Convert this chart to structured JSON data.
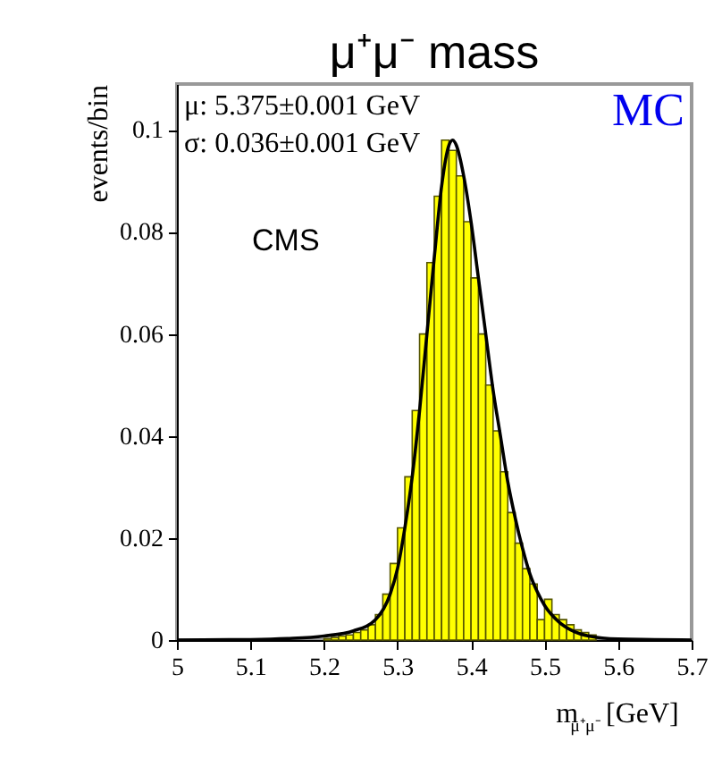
{
  "chart_data": {
    "type": "histogram",
    "title": "μ⁺μ⁻ mass",
    "xlabel": "m$_{μ⁺μ⁻}$ [GeV]",
    "ylabel": "events/bin",
    "annotations": [
      "μ: 5.375±0.001 GeV",
      "σ: 0.036±0.001 GeV",
      "MC",
      "CMS"
    ],
    "xlim": [
      5,
      5.7
    ],
    "xticks": [
      5,
      5.1,
      5.2,
      5.3,
      5.4,
      5.5,
      5.6,
      5.7
    ],
    "ylim": [
      0,
      0.109
    ],
    "yticks": [
      0,
      0.02,
      0.04,
      0.06,
      0.08,
      0.1
    ],
    "grid": false,
    "series": [
      {
        "color": "#ffff00",
        "bins": [
          5.2,
          5.21,
          5.22,
          5.23,
          5.24,
          5.25,
          5.26,
          5.27,
          5.28,
          5.29,
          5.3,
          5.31,
          5.32,
          5.33,
          5.34,
          5.35,
          5.36,
          5.37,
          5.38,
          5.39,
          5.4,
          5.41,
          5.42,
          5.43,
          5.44,
          5.45,
          5.46,
          5.47,
          5.48,
          5.49,
          5.5,
          5.51,
          5.52,
          5.53,
          5.54,
          5.55,
          5.56,
          5.57,
          5.58,
          5.59,
          5.6
        ],
        "values": [
          0.0003,
          0.0005,
          0.0008,
          0.001,
          0.0015,
          0.002,
          0.003,
          0.005,
          0.009,
          0.015,
          0.022,
          0.032,
          0.045,
          0.06,
          0.074,
          0.087,
          0.098,
          0.096,
          0.091,
          0.082,
          0.071,
          0.06,
          0.05,
          0.041,
          0.033,
          0.025,
          0.019,
          0.014,
          0.011,
          0.004,
          0.008,
          0.005,
          0.004,
          0.003,
          0.002,
          0.0015,
          0.001,
          null,
          null,
          null
        ]
      },
      {
        "type": "line",
        "color": "#000000",
        "x": [
          5.0,
          5.1,
          5.15,
          5.2,
          5.24,
          5.27,
          5.29,
          5.3,
          5.31,
          5.32,
          5.33,
          5.34,
          5.35,
          5.36,
          5.37,
          5.375,
          5.38,
          5.39,
          5.4,
          5.41,
          5.42,
          5.43,
          5.44,
          5.45,
          5.46,
          5.47,
          5.48,
          5.49,
          5.5,
          5.52,
          5.54,
          5.56,
          5.6,
          5.65,
          5.7
        ],
        "values": [
          0,
          0.0001,
          0.0003,
          0.0008,
          0.0018,
          0.004,
          0.009,
          0.014,
          0.022,
          0.032,
          0.045,
          0.06,
          0.075,
          0.089,
          0.097,
          0.098,
          0.097,
          0.091,
          0.082,
          0.071,
          0.06,
          0.049,
          0.04,
          0.031,
          0.024,
          0.018,
          0.013,
          0.0095,
          0.0068,
          0.0035,
          0.0017,
          0.0008,
          0.0002,
          0.0001,
          0
        ]
      }
    ]
  }
}
